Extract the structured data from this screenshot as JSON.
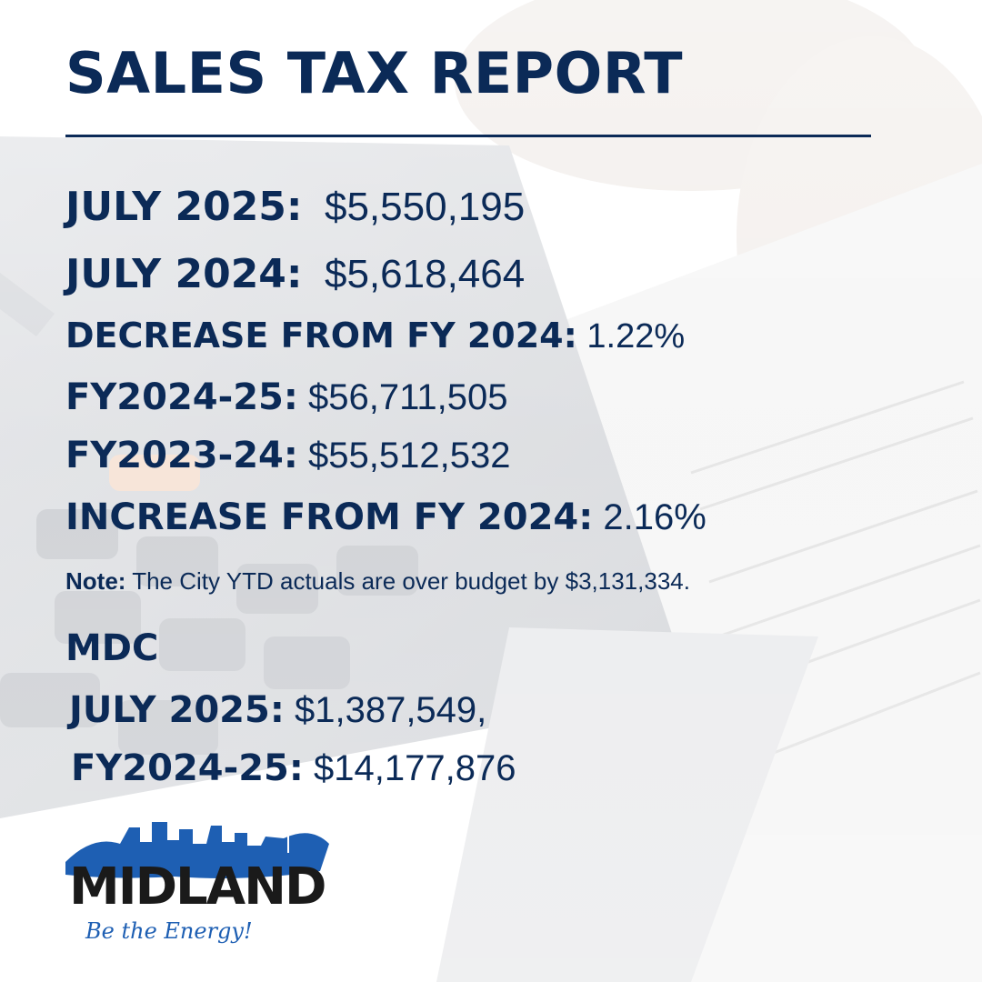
{
  "title": "SALES TAX REPORT",
  "rows": [
    {
      "label": "JULY 2025:",
      "value": "$5,550,195"
    },
    {
      "label": "JULY 2024:",
      "value": "$5,618,464"
    },
    {
      "label": "DECREASE FROM FY 2024:",
      "value": "1.22%"
    },
    {
      "label": "FY2024-25:",
      "value": "$56,711,505"
    },
    {
      "label": "FY2023-24:",
      "value": "$55,512,532"
    },
    {
      "label": "INCREASE FROM FY 2024:",
      "value": "2.16%"
    }
  ],
  "note": {
    "label": "Note:",
    "text": "The City YTD actuals are over budget by $3,131,334."
  },
  "mdc": {
    "heading": "MDC",
    "rows": [
      {
        "label": "JULY 2025:",
        "value": "$1,387,549,"
      },
      {
        "label": "FY2024-25:",
        "value": "$14,177,876"
      }
    ]
  },
  "logo": {
    "wordmark": "MIDLAND",
    "tagline": "Be the Energy!",
    "skyline_color": "#1e5fb3",
    "wordmark_color": "#1a1a1a"
  },
  "colors": {
    "text": "#0b2a57",
    "rule": "#0b2a57"
  }
}
